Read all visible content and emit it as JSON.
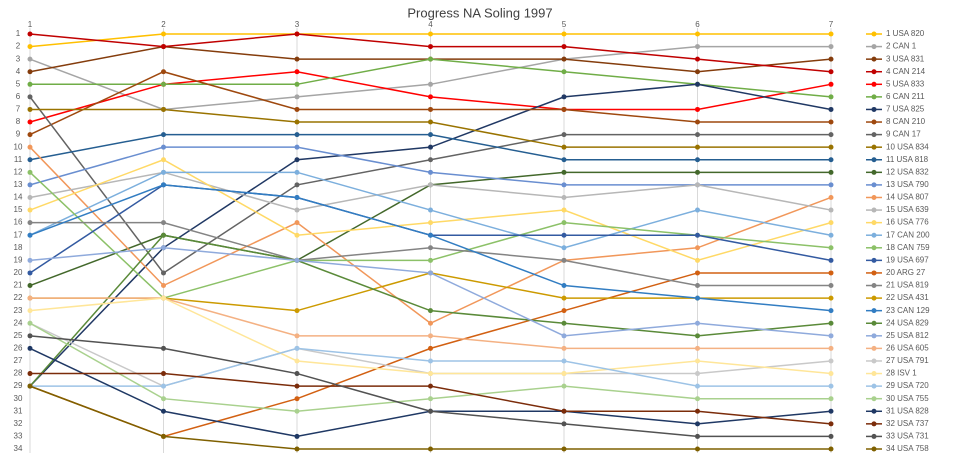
{
  "chart_data": {
    "type": "line",
    "title": "Progress NA Soling 1997",
    "x": [
      1,
      2,
      3,
      4,
      5,
      6,
      7
    ],
    "xlim": [
      1,
      7
    ],
    "xticks": [
      1,
      2,
      3,
      4,
      5,
      6,
      7
    ],
    "ylim": [
      1,
      34
    ],
    "y_inverted": true,
    "grid": true,
    "legend": "right",
    "yticks": [
      1,
      2,
      3,
      4,
      5,
      6,
      7,
      8,
      9,
      10,
      11,
      12,
      13,
      14,
      15,
      16,
      17,
      18,
      19,
      20,
      21,
      22,
      23,
      24,
      25,
      26,
      27,
      28,
      29,
      30,
      31,
      32,
      33,
      34
    ],
    "series": [
      {
        "name": "1 USA 820",
        "color": "#ffc000",
        "values": [
          2,
          1,
          1,
          1,
          1,
          1,
          1
        ]
      },
      {
        "name": "2 CAN 1",
        "color": "#a5a5a5",
        "values": [
          3,
          7,
          6,
          5,
          3,
          2,
          2
        ]
      },
      {
        "name": "3 USA 831",
        "color": "#843c0c",
        "values": [
          4,
          2,
          3,
          3,
          3,
          4,
          3
        ]
      },
      {
        "name": "4 CAN 214",
        "color": "#c00000",
        "values": [
          1,
          2,
          1,
          2,
          2,
          3,
          4
        ]
      },
      {
        "name": "5 USA 833",
        "color": "#ff0000",
        "values": [
          8,
          5,
          4,
          6,
          7,
          7,
          5
        ]
      },
      {
        "name": "6 CAN 211",
        "color": "#70ad47",
        "values": [
          5,
          5,
          5,
          3,
          4,
          5,
          6
        ]
      },
      {
        "name": "7 USA 825",
        "color": "#203864",
        "values": [
          29,
          18,
          11,
          10,
          6,
          5,
          7
        ]
      },
      {
        "name": "8 CAN 210",
        "color": "#9e480e",
        "values": [
          9,
          4,
          7,
          7,
          7,
          8,
          8
        ]
      },
      {
        "name": "9 CAN 17",
        "color": "#636363",
        "values": [
          6,
          20,
          13,
          11,
          9,
          9,
          9
        ]
      },
      {
        "name": "10 USA 834",
        "color": "#997300",
        "values": [
          7,
          7,
          8,
          8,
          10,
          10,
          10
        ]
      },
      {
        "name": "11 USA 818",
        "color": "#255e91",
        "values": [
          11,
          9,
          9,
          9,
          11,
          11,
          11
        ]
      },
      {
        "name": "12 USA 832",
        "color": "#43682b",
        "values": [
          21,
          17,
          19,
          13,
          12,
          12,
          12
        ]
      },
      {
        "name": "13 USA 790",
        "color": "#698ed0",
        "values": [
          13,
          10,
          10,
          12,
          13,
          13,
          13
        ]
      },
      {
        "name": "14 USA 807",
        "color": "#f1975a",
        "values": [
          10,
          21,
          16,
          24,
          19,
          18,
          14
        ]
      },
      {
        "name": "15 USA 639",
        "color": "#b7b7b7",
        "values": [
          14,
          12,
          15,
          13,
          14,
          13,
          15
        ]
      },
      {
        "name": "16 USA 776",
        "color": "#ffd966",
        "values": [
          15,
          11,
          17,
          16,
          15,
          19,
          16
        ]
      },
      {
        "name": "17 CAN 200",
        "color": "#7cafdd",
        "values": [
          17,
          12,
          12,
          15,
          18,
          15,
          17
        ]
      },
      {
        "name": "18 CAN 759",
        "color": "#8cc168",
        "values": [
          12,
          22,
          19,
          19,
          16,
          17,
          18
        ]
      },
      {
        "name": "19 USA 697",
        "color": "#335aa1",
        "values": [
          20,
          13,
          14,
          17,
          17,
          17,
          19
        ]
      },
      {
        "name": "20 ARG 27",
        "color": "#d26012",
        "values": [
          29,
          33,
          30,
          26,
          23,
          20,
          20
        ]
      },
      {
        "name": "21 USA 819",
        "color": "#848484",
        "values": [
          16,
          16,
          19,
          18,
          19,
          21,
          21
        ]
      },
      {
        "name": "22 USA 431",
        "color": "#cc9a00",
        "values": [
          22,
          22,
          23,
          20,
          22,
          22,
          22
        ]
      },
      {
        "name": "23 CAN 129",
        "color": "#327dc2",
        "values": [
          17,
          13,
          14,
          17,
          21,
          22,
          23
        ]
      },
      {
        "name": "24 USA 829",
        "color": "#5a8a39",
        "values": [
          29,
          17,
          19,
          23,
          24,
          25,
          24
        ]
      },
      {
        "name": "25 USA 812",
        "color": "#8faadc",
        "values": [
          19,
          18,
          19,
          20,
          25,
          24,
          25
        ]
      },
      {
        "name": "26 USA 605",
        "color": "#f4b183",
        "values": [
          22,
          22,
          25,
          25,
          26,
          26,
          26
        ]
      },
      {
        "name": "27 USA 791",
        "color": "#c9c9c9",
        "values": [
          24,
          29,
          26,
          28,
          28,
          28,
          27
        ]
      },
      {
        "name": "28 ISV 1",
        "color": "#ffe699",
        "values": [
          23,
          22,
          27,
          28,
          28,
          27,
          28
        ]
      },
      {
        "name": "29 USA 720",
        "color": "#9dc3e6",
        "values": [
          29,
          29,
          26,
          27,
          27,
          29,
          29
        ]
      },
      {
        "name": "30 USA 755",
        "color": "#a9d18e",
        "values": [
          24,
          30,
          31,
          30,
          29,
          30,
          30
        ]
      },
      {
        "name": "31 USA 828",
        "color": "#1f3864",
        "values": [
          26,
          31,
          33,
          31,
          31,
          32,
          31
        ]
      },
      {
        "name": "32 USA 737",
        "color": "#7b2c0a",
        "values": [
          28,
          28,
          29,
          29,
          31,
          31,
          32
        ]
      },
      {
        "name": "33 USA 731",
        "color": "#525252",
        "values": [
          25,
          26,
          28,
          31,
          32,
          33,
          33
        ]
      },
      {
        "name": "34 USA 758",
        "color": "#7f6000",
        "values": [
          29,
          33,
          34,
          34,
          34,
          34,
          34
        ]
      }
    ]
  }
}
